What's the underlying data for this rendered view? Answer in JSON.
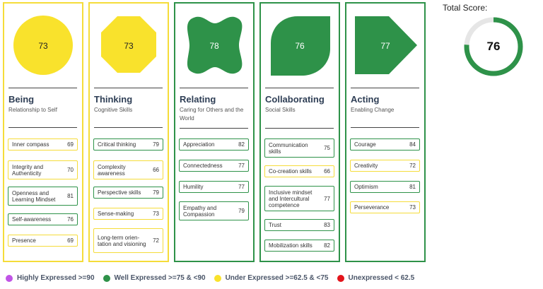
{
  "total": {
    "label": "Total Score:",
    "value": "76",
    "fraction": 0.76,
    "ring_color": "#2e9249",
    "track_color": "#e6e6e6"
  },
  "domains": [
    {
      "title": "Being",
      "subtitle": "Relationship to Self",
      "score": "73",
      "shape": "circle",
      "status": "under",
      "color": "#f9e22c",
      "skills": [
        {
          "label": "Inner compass",
          "score": "69",
          "status": "under"
        },
        {
          "label": "Integrity and Authenticity",
          "score": "70",
          "status": "under"
        },
        {
          "label": "Openness and Learning Mindset",
          "score": "81",
          "status": "well"
        },
        {
          "label": "Self-awareness",
          "score": "76",
          "status": "well"
        },
        {
          "label": "Presence",
          "score": "69",
          "status": "under"
        }
      ]
    },
    {
      "title": "Thinking",
      "subtitle": "Cognitive Skills",
      "score": "73",
      "shape": "octagon",
      "status": "under",
      "color": "#f9e22c",
      "skills": [
        {
          "label": "Critical thinking",
          "score": "79",
          "status": "well"
        },
        {
          "label": "Complexity awareness",
          "score": "66",
          "status": "under"
        },
        {
          "label": "Perspective skills",
          "score": "79",
          "status": "well"
        },
        {
          "label": "Sense-making",
          "score": "73",
          "status": "under"
        },
        {
          "label": "Long-term orien- tation and visioning",
          "score": "72",
          "status": "under"
        }
      ]
    },
    {
      "title": "Relating",
      "subtitle": "Caring for Others and the World",
      "score": "78",
      "shape": "blob",
      "status": "well",
      "color": "#2e9249",
      "skills": [
        {
          "label": "Appreciation",
          "score": "82",
          "status": "well"
        },
        {
          "label": "Connectedness",
          "score": "77",
          "status": "well"
        },
        {
          "label": "Humility",
          "score": "77",
          "status": "well"
        },
        {
          "label": "Empathy and Compassion",
          "score": "79",
          "status": "well"
        }
      ]
    },
    {
      "title": "Collaborating",
      "subtitle": "Social Skills",
      "score": "76",
      "shape": "leaf",
      "status": "well",
      "color": "#2e9249",
      "skills": [
        {
          "label": "Communication skills",
          "score": "75",
          "status": "well"
        },
        {
          "label": "Co-creation skills",
          "score": "66",
          "status": "under"
        },
        {
          "label": "Inclusive mindset and Intercultural competence",
          "score": "77",
          "status": "well"
        },
        {
          "label": "Trust",
          "score": "83",
          "status": "well"
        },
        {
          "label": "Mobilization skills",
          "score": "82",
          "status": "well"
        }
      ]
    },
    {
      "title": "Acting",
      "subtitle": "Enabling Change",
      "score": "77",
      "shape": "pentagon-arrow",
      "status": "well",
      "color": "#2e9249",
      "skills": [
        {
          "label": "Courage",
          "score": "84",
          "status": "well"
        },
        {
          "label": "Creativity",
          "score": "72",
          "status": "under"
        },
        {
          "label": "Optimism",
          "score": "81",
          "status": "well"
        },
        {
          "label": "Perseverance",
          "score": "73",
          "status": "under"
        }
      ]
    }
  ],
  "legend": [
    {
      "label": "Highly Expressed >=90",
      "color": "#c054e6"
    },
    {
      "label": "Well Expressed >=75 & <90",
      "color": "#2e9249"
    },
    {
      "label": "Under Expressed >=62.5 & <75",
      "color": "#f9e22c"
    },
    {
      "label": "Unexpressed < 62.5",
      "color": "#e3141b"
    }
  ]
}
